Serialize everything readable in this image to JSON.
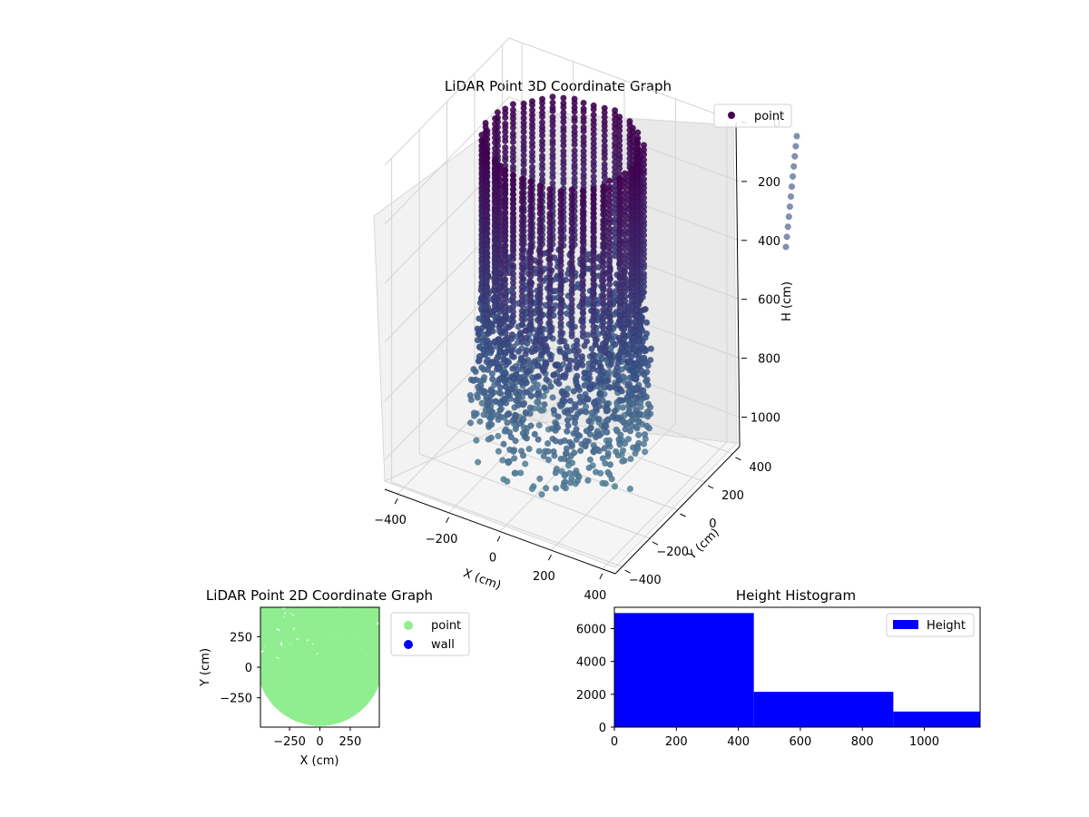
{
  "chart_data": [
    {
      "type": "scatter3d",
      "title": "LiDAR Point 3D Coordinate Graph",
      "xlabel": "X (cm)",
      "ylabel": "Y (cm)",
      "zlabel": "H (cm)",
      "x_ticks": [
        -400,
        -200,
        0,
        200,
        400
      ],
      "x_tick_labels": [
        "−400",
        "−200",
        "0",
        "200",
        "400"
      ],
      "y_ticks": [
        -400,
        -200,
        0,
        200,
        400
      ],
      "y_tick_labels": [
        "−400",
        "−200",
        "0",
        "200",
        "400"
      ],
      "z_ticks": [
        0,
        200,
        400,
        600,
        800,
        1000
      ],
      "z_tick_labels": [
        "0",
        "200",
        "400",
        "600",
        "800",
        "1000"
      ],
      "xlim": [
        -450,
        450
      ],
      "ylim": [
        -450,
        450
      ],
      "zlim": [
        0,
        1100
      ],
      "z_inverted": true,
      "legend": [
        {
          "label": "point",
          "color": "#440154"
        }
      ],
      "legend_position": "top-right",
      "colormap": [
        "#440154",
        "#3b528b",
        "#5b8ea0"
      ],
      "shape": "hollow vertical cylinder of points, radius ~270 cm, heights 0 to ~1100 cm"
    },
    {
      "type": "scatter",
      "title": "LiDAR Point 2D Coordinate Graph",
      "xlabel": "X (cm)",
      "ylabel": "Y (cm)",
      "x_ticks": [
        -250,
        0,
        250
      ],
      "x_tick_labels": [
        "−250",
        "0",
        "250"
      ],
      "y_ticks": [
        -250,
        0,
        250
      ],
      "y_tick_labels": [
        "−250",
        "0",
        "250"
      ],
      "xlim": [
        -490,
        490
      ],
      "ylim": [
        -490,
        490
      ],
      "legend": [
        {
          "label": "point",
          "color": "#90ee90"
        },
        {
          "label": "wall",
          "color": "#0000ff"
        }
      ],
      "legend_position": "outside-right"
    },
    {
      "type": "bar",
      "title": "Height Histogram",
      "bins": [
        {
          "start": 0,
          "end": 450,
          "count": 6950
        },
        {
          "start": 450,
          "end": 900,
          "count": 2150
        },
        {
          "start": 900,
          "end": 1180,
          "count": 950
        }
      ],
      "x_ticks": [
        0,
        200,
        400,
        600,
        800,
        1000
      ],
      "x_tick_labels": [
        "0",
        "200",
        "400",
        "600",
        "800",
        "1000"
      ],
      "y_ticks": [
        0,
        2000,
        4000,
        6000
      ],
      "y_tick_labels": [
        "0",
        "2000",
        "4000",
        "6000"
      ],
      "xlim": [
        0,
        1180
      ],
      "ylim": [
        0,
        7300
      ],
      "bar_color": "#0000ff",
      "legend": [
        {
          "label": "Height",
          "color": "#0000ff"
        }
      ],
      "legend_position": "top-right"
    }
  ]
}
